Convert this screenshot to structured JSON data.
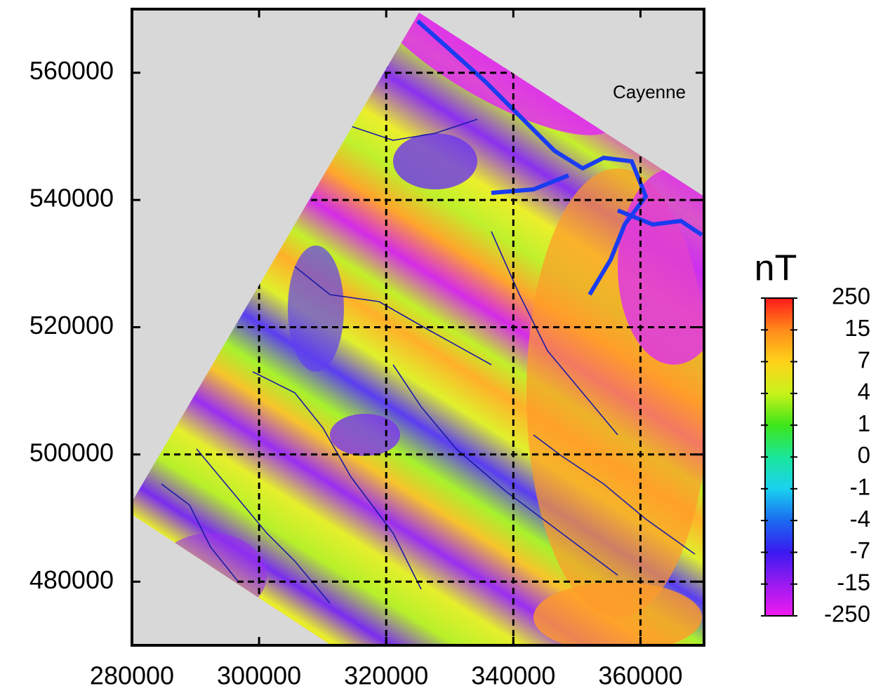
{
  "chart_data": {
    "type": "map",
    "xlim": [
      280000,
      370000
    ],
    "ylim": [
      470000,
      570000
    ],
    "xticks": [
      280000,
      300000,
      320000,
      340000,
      360000
    ],
    "yticks": [
      480000,
      500000,
      520000,
      540000,
      560000
    ],
    "grid": true,
    "annotations": [
      "Cayenne"
    ],
    "colorbar": {
      "label": "nT",
      "ticks": [
        250,
        15,
        7,
        4,
        1,
        0,
        -1,
        -4,
        -7,
        -15,
        -250
      ]
    }
  }
}
